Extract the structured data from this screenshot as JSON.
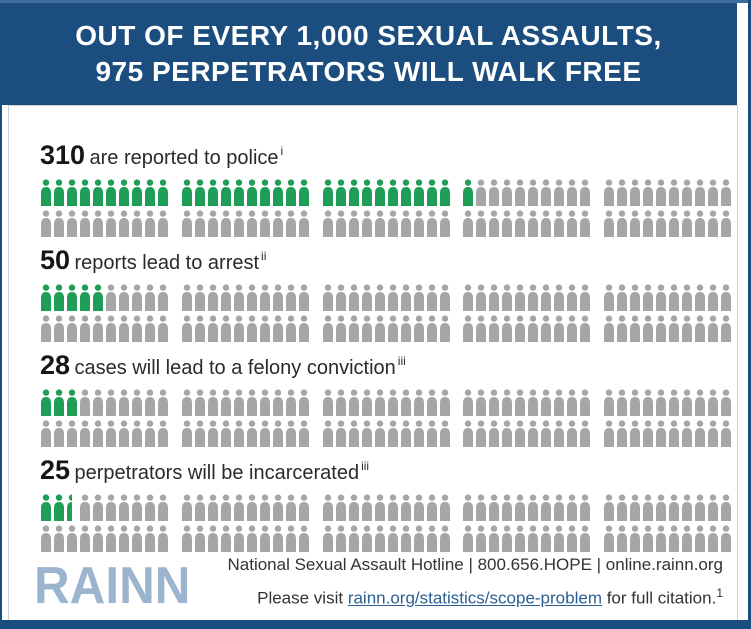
{
  "header": {
    "line1": "OUT OF EVERY 1,000 SEXUAL ASSAULTS,",
    "line2": "975 PERPETRATORS WILL WALK FREE"
  },
  "rows": [
    {
      "value": "310",
      "label": "are reported to police",
      "note": "i",
      "green_full": 31,
      "green_half": false
    },
    {
      "value": "50",
      "label": "reports lead to arrest",
      "note": "ii",
      "green_full": 5,
      "green_half": false
    },
    {
      "value": "28",
      "label": "cases will lead to a felony conviction",
      "note": "iii",
      "green_full": 3,
      "green_half": false
    },
    {
      "value": "25",
      "label": "perpetrators will be incarcerated",
      "note": "iii",
      "green_full": 2,
      "green_half": true
    }
  ],
  "pictograph": {
    "icons_per_stat": 100,
    "icons_per_line": 50,
    "group_size": 10,
    "people_per_icon": 10
  },
  "footer": {
    "logo": "RAINN",
    "line1": "National Sexual Assault Hotline | 800.656.HOPE | online.rainn.org",
    "line2_prefix": "Please visit ",
    "line2_link": "rainn.org/statistics/scope-problem",
    "line2_suffix": " for full citation.",
    "line2_sup": "1"
  },
  "colors": {
    "header_blue": "#1b4e7e",
    "accent_green": "#1f9e58",
    "icon_gray": "#a6a6a6",
    "logo_blue": "#9bb5ce",
    "link_blue": "#2a5f93"
  },
  "chart_data": {
    "type": "bar",
    "variant": "pictograph",
    "title": "OUT OF EVERY 1,000 SEXUAL ASSAULTS, 975 PERPETRATORS WILL WALK FREE",
    "total": 1000,
    "people_per_icon": 10,
    "categories": [
      "are reported to police",
      "reports lead to arrest",
      "cases will lead to a felony conviction",
      "perpetrators will be incarcerated"
    ],
    "values": [
      310,
      50,
      28,
      25
    ],
    "footnotes": [
      "i",
      "ii",
      "iii",
      "iii"
    ],
    "legend_position": "none",
    "grid": false
  }
}
